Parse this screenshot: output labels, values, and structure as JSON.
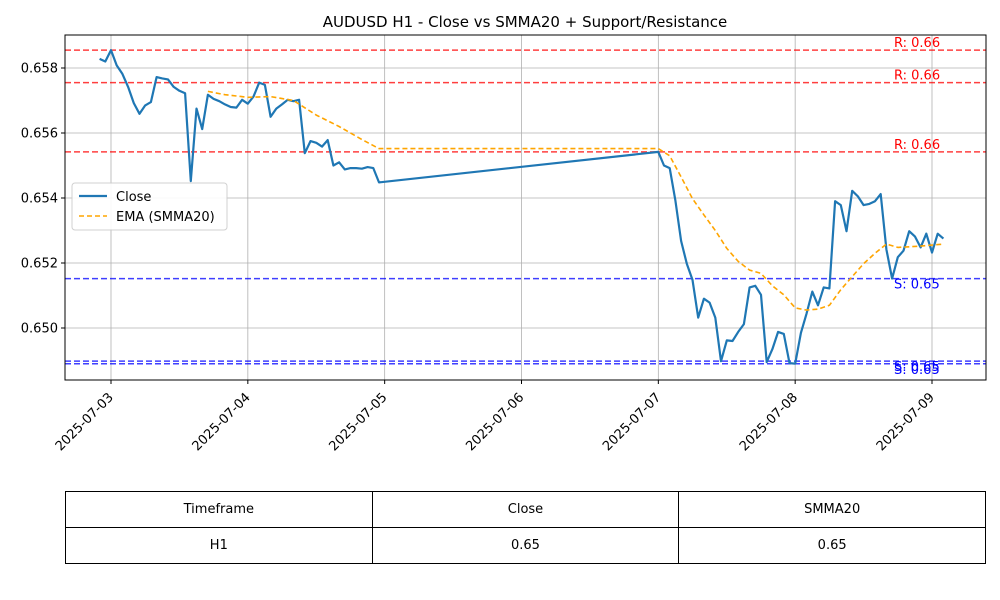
{
  "chart_data": {
    "type": "line",
    "title": "AUDUSD H1 - Close vs SMMA20 + Support/Resistance",
    "xlabel": "",
    "ylabel": "",
    "x_ticks": [
      "2025-07-03",
      "2025-07-04",
      "2025-07-05",
      "2025-07-06",
      "2025-07-07",
      "2025-07-08",
      "2025-07-09"
    ],
    "y_ticks": [
      "0.650",
      "0.652",
      "0.654",
      "0.656",
      "0.658"
    ],
    "ylim": [
      0.64845,
      0.65905
    ],
    "grid": true,
    "legend_position": "center-left",
    "series": [
      {
        "name": "Close",
        "color": "#1f77b4",
        "style": "solid",
        "points": [
          [
            "2025-07-02 22:00",
            0.65828
          ],
          [
            "2025-07-02 23:00",
            0.6582
          ],
          [
            "2025-07-03 00:00",
            0.65855
          ],
          [
            "2025-07-03 01:00",
            0.65808
          ],
          [
            "2025-07-03 02:00",
            0.65782
          ],
          [
            "2025-07-03 03:00",
            0.65742
          ],
          [
            "2025-07-03 04:00",
            0.65692
          ],
          [
            "2025-07-03 05:00",
            0.65659
          ],
          [
            "2025-07-03 06:00",
            0.65685
          ],
          [
            "2025-07-03 07:00",
            0.65695
          ],
          [
            "2025-07-03 08:00",
            0.65772
          ],
          [
            "2025-07-03 09:00",
            0.65768
          ],
          [
            "2025-07-03 10:00",
            0.65765
          ],
          [
            "2025-07-03 11:00",
            0.65742
          ],
          [
            "2025-07-03 12:00",
            0.6573
          ],
          [
            "2025-07-03 13:00",
            0.65722
          ],
          [
            "2025-07-03 14:00",
            0.65452
          ],
          [
            "2025-07-03 15:00",
            0.65675
          ],
          [
            "2025-07-03 16:00",
            0.65612
          ],
          [
            "2025-07-03 17:00",
            0.65718
          ],
          [
            "2025-07-03 18:00",
            0.65705
          ],
          [
            "2025-07-03 19:00",
            0.65698
          ],
          [
            "2025-07-03 20:00",
            0.65688
          ],
          [
            "2025-07-03 21:00",
            0.6568
          ],
          [
            "2025-07-03 22:00",
            0.65678
          ],
          [
            "2025-07-03 23:00",
            0.65702
          ],
          [
            "2025-07-04 00:00",
            0.6569
          ],
          [
            "2025-07-04 01:00",
            0.65712
          ],
          [
            "2025-07-04 02:00",
            0.65755
          ],
          [
            "2025-07-04 03:00",
            0.65748
          ],
          [
            "2025-07-04 04:00",
            0.6565
          ],
          [
            "2025-07-04 05:00",
            0.65675
          ],
          [
            "2025-07-04 06:00",
            0.65688
          ],
          [
            "2025-07-04 07:00",
            0.65702
          ],
          [
            "2025-07-04 08:00",
            0.65698
          ],
          [
            "2025-07-04 09:00",
            0.65702
          ],
          [
            "2025-07-04 10:00",
            0.65538
          ],
          [
            "2025-07-04 11:00",
            0.65575
          ],
          [
            "2025-07-04 12:00",
            0.6557
          ],
          [
            "2025-07-04 13:00",
            0.65558
          ],
          [
            "2025-07-04 14:00",
            0.65578
          ],
          [
            "2025-07-04 15:00",
            0.655
          ],
          [
            "2025-07-04 16:00",
            0.6551
          ],
          [
            "2025-07-04 17:00",
            0.65488
          ],
          [
            "2025-07-04 18:00",
            0.65492
          ],
          [
            "2025-07-04 19:00",
            0.65492
          ],
          [
            "2025-07-04 20:00",
            0.6549
          ],
          [
            "2025-07-04 21:00",
            0.65495
          ],
          [
            "2025-07-04 22:00",
            0.65492
          ],
          [
            "2025-07-04 23:00",
            0.65448
          ],
          [
            "2025-07-07 00:00",
            0.65542
          ],
          [
            "2025-07-07 01:00",
            0.655
          ],
          [
            "2025-07-07 02:00",
            0.65492
          ],
          [
            "2025-07-07 03:00",
            0.65392
          ],
          [
            "2025-07-07 04:00",
            0.65268
          ],
          [
            "2025-07-07 05:00",
            0.65198
          ],
          [
            "2025-07-07 06:00",
            0.65148
          ],
          [
            "2025-07-07 07:00",
            0.65032
          ],
          [
            "2025-07-07 08:00",
            0.6509
          ],
          [
            "2025-07-07 09:00",
            0.65078
          ],
          [
            "2025-07-07 10:00",
            0.65032
          ],
          [
            "2025-07-07 11:00",
            0.64898
          ],
          [
            "2025-07-07 12:00",
            0.64962
          ],
          [
            "2025-07-07 13:00",
            0.6496
          ],
          [
            "2025-07-07 14:00",
            0.64988
          ],
          [
            "2025-07-07 15:00",
            0.65012
          ],
          [
            "2025-07-07 16:00",
            0.65125
          ],
          [
            "2025-07-07 17:00",
            0.6513
          ],
          [
            "2025-07-07 18:00",
            0.65102
          ],
          [
            "2025-07-07 19:00",
            0.64895
          ],
          [
            "2025-07-07 20:00",
            0.64935
          ],
          [
            "2025-07-07 21:00",
            0.64988
          ],
          [
            "2025-07-07 22:00",
            0.64982
          ],
          [
            "2025-07-07 23:00",
            0.64892
          ],
          [
            "2025-07-08 00:00",
            0.6489
          ],
          [
            "2025-07-08 01:00",
            0.64985
          ],
          [
            "2025-07-08 02:00",
            0.65045
          ],
          [
            "2025-07-08 03:00",
            0.65112
          ],
          [
            "2025-07-08 04:00",
            0.6507
          ],
          [
            "2025-07-08 05:00",
            0.65125
          ],
          [
            "2025-07-08 06:00",
            0.65122
          ],
          [
            "2025-07-08 07:00",
            0.6539
          ],
          [
            "2025-07-08 08:00",
            0.65378
          ],
          [
            "2025-07-08 09:00",
            0.65298
          ],
          [
            "2025-07-08 10:00",
            0.65422
          ],
          [
            "2025-07-08 11:00",
            0.65405
          ],
          [
            "2025-07-08 12:00",
            0.65378
          ],
          [
            "2025-07-08 13:00",
            0.65382
          ],
          [
            "2025-07-08 14:00",
            0.6539
          ],
          [
            "2025-07-08 15:00",
            0.65412
          ],
          [
            "2025-07-08 16:00",
            0.65242
          ],
          [
            "2025-07-08 17:00",
            0.65152
          ],
          [
            "2025-07-08 18:00",
            0.65218
          ],
          [
            "2025-07-08 19:00",
            0.65238
          ],
          [
            "2025-07-08 20:00",
            0.65298
          ],
          [
            "2025-07-08 21:00",
            0.65282
          ],
          [
            "2025-07-08 22:00",
            0.65248
          ],
          [
            "2025-07-08 23:00",
            0.6529
          ],
          [
            "2025-07-09 00:00",
            0.65232
          ],
          [
            "2025-07-09 01:00",
            0.6529
          ],
          [
            "2025-07-09 02:00",
            0.65275
          ]
        ]
      },
      {
        "name": "EMA (SMMA20)",
        "color": "#ffa500",
        "style": "dashed",
        "points": [
          [
            "2025-07-03 17:00",
            0.65728
          ],
          [
            "2025-07-03 20:00",
            0.65718
          ],
          [
            "2025-07-04 00:00",
            0.6571
          ],
          [
            "2025-07-04 04:00",
            0.65712
          ],
          [
            "2025-07-04 08:00",
            0.657
          ],
          [
            "2025-07-04 12:00",
            0.65655
          ],
          [
            "2025-07-04 16:00",
            0.6562
          ],
          [
            "2025-07-04 20:00",
            0.6558
          ],
          [
            "2025-07-04 23:00",
            0.65552
          ],
          [
            "2025-07-07 00:00",
            0.65552
          ],
          [
            "2025-07-07 02:00",
            0.6553
          ],
          [
            "2025-07-07 04:00",
            0.65465
          ],
          [
            "2025-07-07 06:00",
            0.65398
          ],
          [
            "2025-07-07 08:00",
            0.65348
          ],
          [
            "2025-07-07 10:00",
            0.653
          ],
          [
            "2025-07-07 12:00",
            0.65245
          ],
          [
            "2025-07-07 14:00",
            0.65205
          ],
          [
            "2025-07-07 16:00",
            0.65178
          ],
          [
            "2025-07-07 18:00",
            0.65168
          ],
          [
            "2025-07-07 20:00",
            0.6513
          ],
          [
            "2025-07-07 22:00",
            0.65102
          ],
          [
            "2025-07-08 00:00",
            0.65062
          ],
          [
            "2025-07-08 02:00",
            0.65055
          ],
          [
            "2025-07-08 04:00",
            0.65058
          ],
          [
            "2025-07-08 06:00",
            0.6507
          ],
          [
            "2025-07-08 08:00",
            0.65118
          ],
          [
            "2025-07-08 10:00",
            0.65158
          ],
          [
            "2025-07-08 12:00",
            0.65198
          ],
          [
            "2025-07-08 14:00",
            0.6523
          ],
          [
            "2025-07-08 16:00",
            0.65258
          ],
          [
            "2025-07-08 18:00",
            0.65248
          ],
          [
            "2025-07-08 20:00",
            0.6525
          ],
          [
            "2025-07-08 22:00",
            0.65252
          ],
          [
            "2025-07-09 00:00",
            0.65255
          ],
          [
            "2025-07-09 02:00",
            0.65258
          ]
        ]
      }
    ],
    "resistance_lines": [
      {
        "value": 0.65855,
        "label": "R: 0.66"
      },
      {
        "value": 0.65755,
        "label": "R: 0.66"
      },
      {
        "value": 0.65542,
        "label": "R: 0.66"
      }
    ],
    "support_lines": [
      {
        "value": 0.65152,
        "label": "S: 0.65"
      },
      {
        "value": 0.64898,
        "label": "S: 0.65"
      },
      {
        "value": 0.6489,
        "label": "S: 0.65"
      }
    ],
    "colors": {
      "resistance": "#ff0000",
      "support": "#0000ff",
      "grid": "#b0b0b0"
    }
  },
  "table": {
    "headers": [
      "Timeframe",
      "Close",
      "SMMA20"
    ],
    "row": [
      "H1",
      "0.65",
      "0.65"
    ]
  }
}
